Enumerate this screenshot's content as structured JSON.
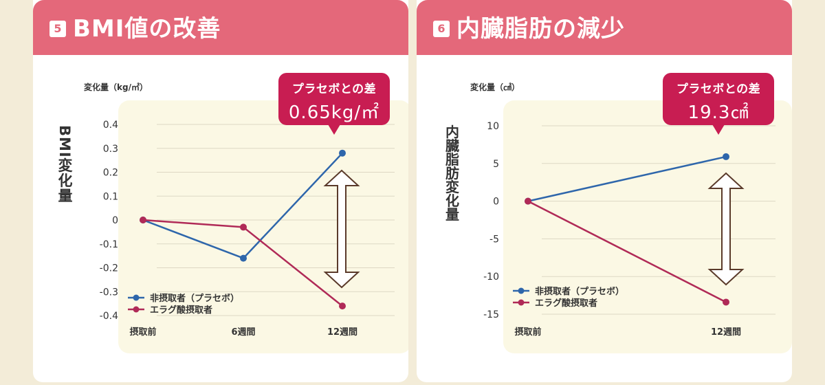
{
  "colors": {
    "placebo": "#2e66ab",
    "ellagic": "#b02a57",
    "header": "#e4687a",
    "callout": "#c81d52",
    "plot_bg": "#fbf8e4"
  },
  "panels": [
    {
      "badge": "5",
      "title": "BMI値の改善",
      "unit": "変化量（kg/㎡）",
      "axis_title": "BMI変化量",
      "callout_label": "プラセボとの差",
      "callout_value": "0.65kg/㎡"
    },
    {
      "badge": "6",
      "title": "内臓脂肪の減少",
      "unit": "変化量（㎠）",
      "axis_title": "内臓脂肪変化量",
      "callout_label": "プラセボとの差",
      "callout_value": "19.3㎠"
    }
  ],
  "chart_data": [
    {
      "type": "line",
      "title": "BMI値の改善",
      "ylabel": "BMI変化量",
      "unit": "変化量（kg/㎡）",
      "categories": [
        "摂取前",
        "6週間",
        "12週間"
      ],
      "ylim": [
        -0.4,
        0.4
      ],
      "yticks": [
        0.4,
        0.3,
        0.2,
        0.1,
        0,
        -0.1,
        -0.2,
        -0.3,
        -0.4
      ],
      "ytick_labels": [
        "0.4",
        "0.3",
        "0.2",
        "0.1",
        "0",
        "-0.1",
        "-0.2",
        "-0.3",
        "-0.4"
      ],
      "grid": true,
      "legend_position": "bottom-left",
      "series": [
        {
          "name": "非摂取者（プラセボ）",
          "values": [
            0,
            -0.16,
            0.28
          ]
        },
        {
          "name": "エラグ酸摂取者",
          "values": [
            0,
            -0.03,
            -0.36
          ]
        }
      ],
      "annotation": "プラセボとの差 0.65kg/㎡"
    },
    {
      "type": "line",
      "title": "内臓脂肪の減少",
      "ylabel": "内臓脂肪変化量",
      "unit": "変化量（㎠）",
      "categories": [
        "摂取前",
        "12週間"
      ],
      "ylim": [
        -15,
        10
      ],
      "yticks": [
        10,
        5,
        0,
        -5,
        -10,
        -15
      ],
      "ytick_labels": [
        "10",
        "5",
        "0",
        "-5",
        "-10",
        "-15"
      ],
      "grid": true,
      "legend_position": "bottom-left",
      "series": [
        {
          "name": "非摂取者（プラセボ）",
          "values": [
            0,
            5.9
          ]
        },
        {
          "name": "エラグ酸摂取者",
          "values": [
            0,
            -13.4
          ]
        }
      ],
      "annotation": "プラセボとの差 19.3㎠"
    }
  ]
}
